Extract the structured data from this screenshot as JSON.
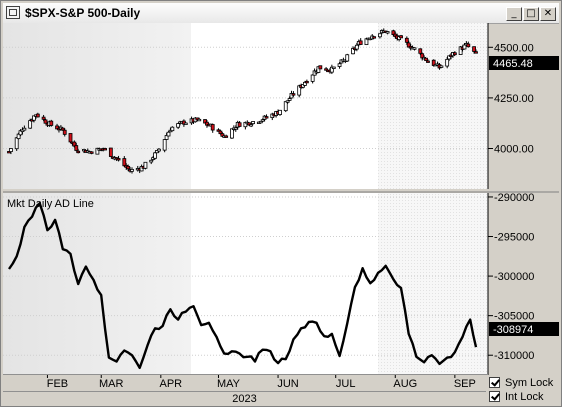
{
  "window": {
    "title": "$SPX-S&P 500-Daily",
    "buttons": {
      "minimize": "_",
      "maximize": "□",
      "close": "✕"
    }
  },
  "price_panel": {
    "last_value": "4465.48",
    "y_ticks": [
      "4500.00",
      "4250.00",
      "4000.00"
    ]
  },
  "ad_panel": {
    "label": "Mkt Daily AD Line",
    "last_value": "-308974",
    "y_ticks": [
      "-290000",
      "-295000",
      "-300000",
      "-305000",
      "-310000"
    ]
  },
  "x_axis": {
    "months": [
      "FEB",
      "MAR",
      "APR",
      "MAY",
      "JUN",
      "JUL",
      "AUG",
      "SEP"
    ],
    "year": "2023"
  },
  "locks": {
    "sym": {
      "label": "Sym Lock",
      "checked": true
    },
    "int": {
      "label": "Int Lock",
      "checked": true
    }
  },
  "colors": {
    "up": "#ffffff",
    "down": "#d0101a",
    "line": "#000000",
    "highlight": "#000000"
  },
  "chart_data": [
    {
      "type": "candlestick",
      "title": "$SPX-S&P 500-Daily",
      "ylim": [
        3800,
        4620
      ],
      "approx_close_path": [
        [
          "2023-01-12",
          3985
        ],
        [
          "2023-01-19",
          4100
        ],
        [
          "2023-01-26",
          4170
        ],
        [
          "2023-02-02",
          4120
        ],
        [
          "2023-02-09",
          4090
        ],
        [
          "2023-02-16",
          4000
        ],
        [
          "2023-02-23",
          3985
        ],
        [
          "2023-03-02",
          4000
        ],
        [
          "2023-03-09",
          3950
        ],
        [
          "2023-03-16",
          3890
        ],
        [
          "2023-03-23",
          3910
        ],
        [
          "2023-03-30",
          3980
        ],
        [
          "2023-04-06",
          4100
        ],
        [
          "2023-04-13",
          4130
        ],
        [
          "2023-04-20",
          4140
        ],
        [
          "2023-04-27",
          4110
        ],
        [
          "2023-05-04",
          4060
        ],
        [
          "2023-05-11",
          4120
        ],
        [
          "2023-05-18",
          4130
        ],
        [
          "2023-05-25",
          4150
        ],
        [
          "2023-06-01",
          4180
        ],
        [
          "2023-06-08",
          4260
        ],
        [
          "2023-06-15",
          4330
        ],
        [
          "2023-06-22",
          4400
        ],
        [
          "2023-06-29",
          4390
        ],
        [
          "2023-07-06",
          4440
        ],
        [
          "2023-07-13",
          4520
        ],
        [
          "2023-07-20",
          4560
        ],
        [
          "2023-07-27",
          4580
        ],
        [
          "2023-08-03",
          4540
        ],
        [
          "2023-08-10",
          4500
        ],
        [
          "2023-08-17",
          4440
        ],
        [
          "2023-08-24",
          4400
        ],
        [
          "2023-08-31",
          4470
        ],
        [
          "2023-09-07",
          4510
        ],
        [
          "2023-09-12",
          4465
        ]
      ]
    },
    {
      "type": "line",
      "title": "Mkt Daily AD Line",
      "ylim": [
        -312500,
        -289500
      ],
      "x": [
        "2023-01-12",
        "2023-01-16",
        "2023-01-20",
        "2023-01-24",
        "2023-01-28",
        "2023-02-01",
        "2023-02-05",
        "2023-02-09",
        "2023-02-13",
        "2023-02-17",
        "2023-02-21",
        "2023-02-25",
        "2023-03-01",
        "2023-03-05",
        "2023-03-09",
        "2023-03-13",
        "2023-03-17",
        "2023-03-21",
        "2023-03-25",
        "2023-03-29",
        "2023-04-02",
        "2023-04-06",
        "2023-04-10",
        "2023-04-14",
        "2023-04-18",
        "2023-04-22",
        "2023-04-26",
        "2023-04-30",
        "2023-05-04",
        "2023-05-08",
        "2023-05-12",
        "2023-05-16",
        "2023-05-20",
        "2023-05-24",
        "2023-05-28",
        "2023-06-01",
        "2023-06-05",
        "2023-06-09",
        "2023-06-13",
        "2023-06-17",
        "2023-06-21",
        "2023-06-25",
        "2023-06-29",
        "2023-07-03",
        "2023-07-07",
        "2023-07-11",
        "2023-07-15",
        "2023-07-19",
        "2023-07-23",
        "2023-07-27",
        "2023-07-31",
        "2023-08-04",
        "2023-08-08",
        "2023-08-12",
        "2023-08-16",
        "2023-08-20",
        "2023-08-24",
        "2023-08-28",
        "2023-09-01",
        "2023-09-05",
        "2023-09-09",
        "2023-09-12"
      ],
      "series": [
        {
          "name": "Mkt Daily AD Line",
          "values": [
            -299100,
            -297500,
            -293800,
            -292500,
            -290800,
            -294200,
            -292900,
            -296600,
            -297200,
            -301000,
            -298800,
            -300500,
            -302400,
            -310300,
            -310800,
            -309400,
            -310000,
            -311600,
            -308800,
            -306600,
            -306300,
            -304200,
            -305500,
            -304500,
            -303800,
            -306200,
            -305900,
            -307700,
            -309800,
            -309500,
            -309800,
            -310200,
            -310800,
            -309300,
            -309500,
            -311000,
            -310500,
            -308000,
            -306600,
            -305800,
            -305900,
            -307600,
            -307300,
            -310100,
            -306000,
            -301400,
            -299000,
            -300900,
            -299600,
            -298700,
            -300400,
            -301500,
            -307300,
            -310200,
            -310900,
            -310000,
            -311100,
            -310300,
            -309600,
            -307700,
            -305500,
            -308974
          ]
        }
      ]
    }
  ]
}
